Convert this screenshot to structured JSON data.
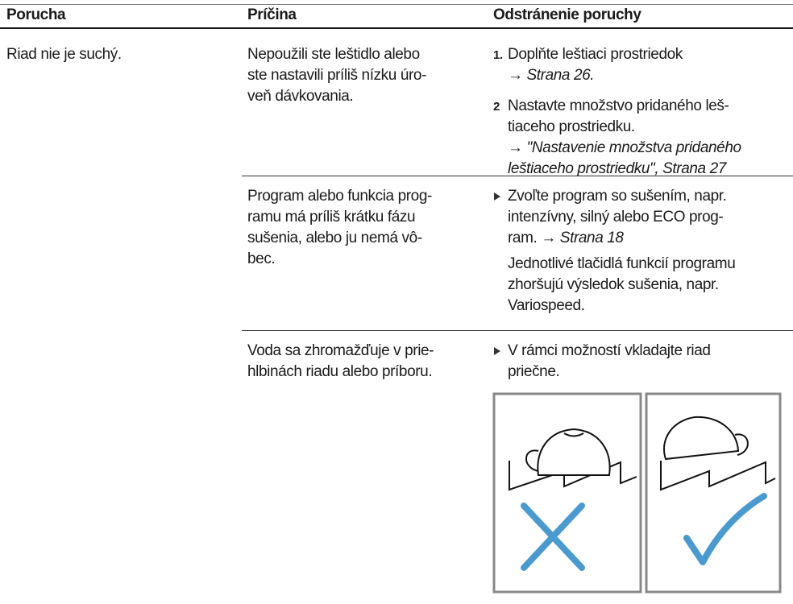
{
  "table": {
    "header": [
      "Porucha",
      "Príčina",
      "Odstránenie poruchy"
    ],
    "problem": "Riad nie je suchý.",
    "rows": [
      {
        "cause": [
          "Nepoužili ste leštidlo alebo",
          "ste nastavili príliš nízku úro-",
          "veň dávkovania."
        ],
        "steps": [
          {
            "number": "1.",
            "lines": [
              {
                "text": "Doplňte leštiaci prostriedok"
              },
              {
                "arrow": "→",
                "link": "Strana 26."
              }
            ]
          },
          {
            "number": "2",
            "lines": [
              {
                "text": "Nastavte množstvo pridaného leš-"
              },
              {
                "text": "tiaceho prostriedku."
              },
              {
                "arrow": "→",
                "link": "\"Nastavenie množstva pridaného"
              },
              {
                "link": "leštiaceho prostriedku\", Strana 27"
              }
            ]
          }
        ]
      },
      {
        "cause": [
          "Program alebo funkcia prog-",
          "ramu má príliš krátku fázu",
          "sušenia, alebo ju nemá vô-",
          "bec."
        ],
        "steps": [
          {
            "lines": [
              {
                "text": "Zvoľte program so sušením, napr."
              },
              {
                "text": "intenzívny, silný alebo ECO prog-"
              },
              {
                "text": "ram.",
                "arrow": "→",
                "link": "Strana 18"
              }
            ]
          }
        ],
        "note": [
          "Jednotlivé tlačidlá funkcií programu",
          "zhoršujú výsledok sušenia, napr.",
          "Variospeed."
        ]
      },
      {
        "cause": [
          "Voda sa zhromažďuje v prie-",
          "hlbinách riadu alebo príboru."
        ],
        "steps": [
          {
            "lines": [
              {
                "text": "V rámci možností vkladajte riad"
              },
              {
                "text": "priečne."
              }
            ]
          }
        ]
      }
    ]
  }
}
